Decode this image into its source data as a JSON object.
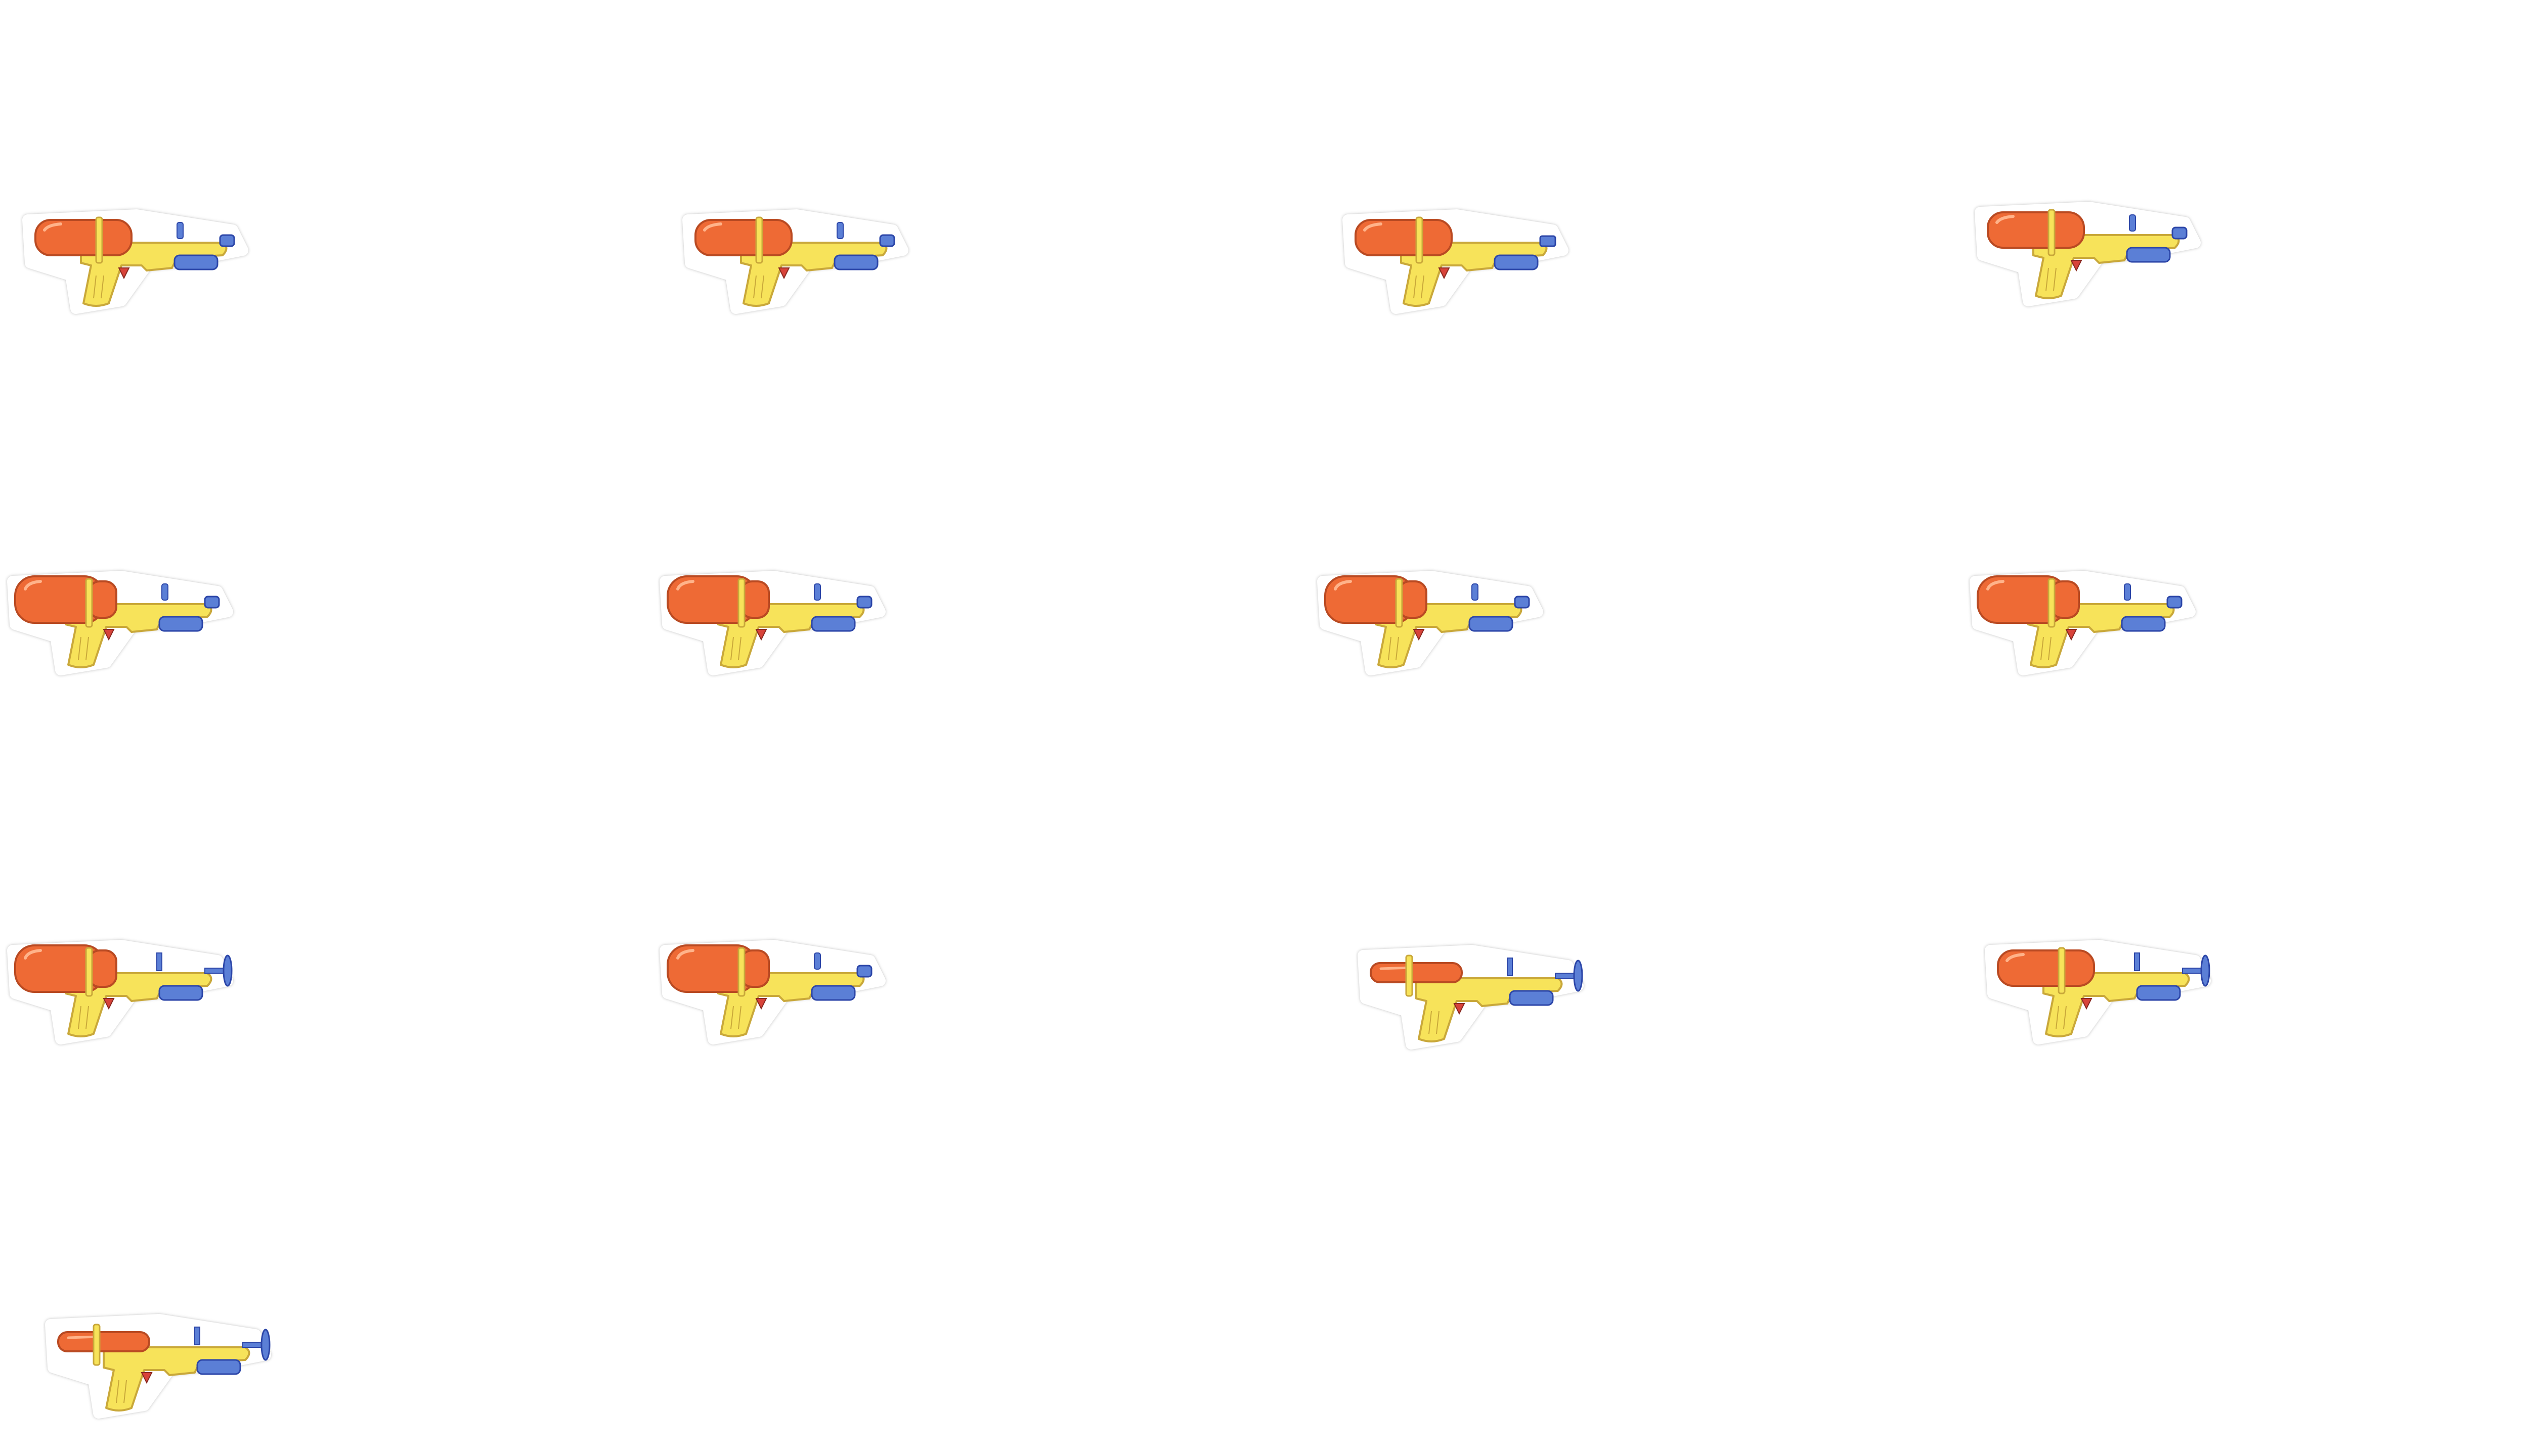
{
  "canvas": {
    "background": "#ffffff"
  },
  "sprite_sheet": {
    "item_icon": "water-gun-icon",
    "count": 13,
    "colors": {
      "tank": "#ee6a35",
      "body": "#f7e35a",
      "accent_blue": "#5b7fd6",
      "dark_blue": "#2c46a8",
      "outline": "#c9a83a",
      "trigger": "#d8433a",
      "sticker_border": "#ffffff"
    },
    "variants": [
      {
        "tank": "medium",
        "nozzle": "cap"
      },
      {
        "tank": "medium",
        "nozzle": "cap"
      },
      {
        "tank": "medium",
        "nozzle": "block"
      },
      {
        "tank": "medium",
        "nozzle": "cap"
      },
      {
        "tank": "large",
        "nozzle": "cap"
      },
      {
        "tank": "large",
        "nozzle": "cap"
      },
      {
        "tank": "large",
        "nozzle": "cap"
      },
      {
        "tank": "large",
        "nozzle": "cap"
      },
      {
        "tank": "large",
        "nozzle": "propeller"
      },
      {
        "tank": "large",
        "nozzle": "cap"
      },
      {
        "tank": "slim",
        "nozzle": "propeller"
      },
      {
        "tank": "medium",
        "nozzle": "propeller"
      },
      {
        "tank": "slim",
        "nozzle": "propeller"
      }
    ]
  }
}
